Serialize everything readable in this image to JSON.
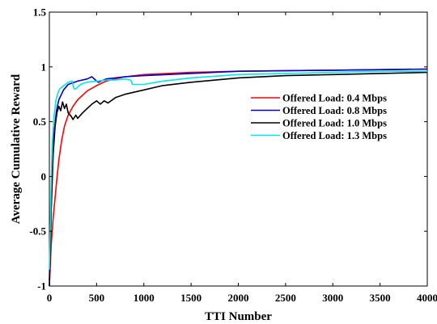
{
  "chart_data": {
    "type": "line",
    "title": "",
    "xlabel": "TTI Number",
    "ylabel": "Average Cumulative Reward",
    "xlim": [
      0,
      4000
    ],
    "ylim": [
      -1,
      1.5
    ],
    "x_ticks": [
      "0",
      "500",
      "1000",
      "1500",
      "2000",
      "2500",
      "3000",
      "3500",
      "4000"
    ],
    "y_ticks": [
      "-1",
      "-0.5",
      "0",
      "0.5",
      "1",
      "1.5"
    ],
    "grid": false,
    "legend_position": "upper-right",
    "series": [
      {
        "name": "Offered Load: 0.4 Mbps",
        "color": "#ff0000",
        "points": [
          [
            0,
            -1.0
          ],
          [
            20,
            -0.62
          ],
          [
            40,
            -0.38
          ],
          [
            60,
            -0.2
          ],
          [
            80,
            -0.02
          ],
          [
            100,
            0.15
          ],
          [
            130,
            0.33
          ],
          [
            160,
            0.46
          ],
          [
            200,
            0.56
          ],
          [
            250,
            0.64
          ],
          [
            300,
            0.7
          ],
          [
            400,
            0.78
          ],
          [
            500,
            0.83
          ],
          [
            600,
            0.87
          ],
          [
            800,
            0.91
          ],
          [
            1000,
            0.93
          ],
          [
            1500,
            0.95
          ],
          [
            2000,
            0.96
          ],
          [
            3000,
            0.97
          ],
          [
            4000,
            0.98
          ]
        ]
      },
      {
        "name": "Offered Load: 0.8 Mbps",
        "color": "#0000cc",
        "points": [
          [
            0,
            -0.95
          ],
          [
            15,
            -0.4
          ],
          [
            30,
            0.05
          ],
          [
            50,
            0.4
          ],
          [
            75,
            0.6
          ],
          [
            100,
            0.7
          ],
          [
            150,
            0.79
          ],
          [
            200,
            0.84
          ],
          [
            300,
            0.87
          ],
          [
            400,
            0.89
          ],
          [
            450,
            0.91
          ],
          [
            500,
            0.87
          ],
          [
            520,
            0.86
          ],
          [
            600,
            0.89
          ],
          [
            800,
            0.91
          ],
          [
            1000,
            0.92
          ],
          [
            1500,
            0.94
          ],
          [
            2000,
            0.96
          ],
          [
            3000,
            0.97
          ],
          [
            4000,
            0.98
          ]
        ]
      },
      {
        "name": "Offered Load: 1.0 Mbps",
        "color": "#000000",
        "points": [
          [
            0,
            -1.0
          ],
          [
            20,
            -0.3
          ],
          [
            40,
            0.2
          ],
          [
            60,
            0.45
          ],
          [
            80,
            0.58
          ],
          [
            100,
            0.64
          ],
          [
            120,
            0.6
          ],
          [
            140,
            0.68
          ],
          [
            160,
            0.62
          ],
          [
            180,
            0.66
          ],
          [
            200,
            0.58
          ],
          [
            230,
            0.55
          ],
          [
            250,
            0.52
          ],
          [
            280,
            0.56
          ],
          [
            300,
            0.53
          ],
          [
            350,
            0.58
          ],
          [
            400,
            0.62
          ],
          [
            450,
            0.66
          ],
          [
            500,
            0.69
          ],
          [
            540,
            0.66
          ],
          [
            580,
            0.69
          ],
          [
            620,
            0.67
          ],
          [
            700,
            0.72
          ],
          [
            800,
            0.75
          ],
          [
            1000,
            0.79
          ],
          [
            1200,
            0.83
          ],
          [
            1500,
            0.86
          ],
          [
            2000,
            0.9
          ],
          [
            2500,
            0.92
          ],
          [
            3000,
            0.93
          ],
          [
            3500,
            0.94
          ],
          [
            4000,
            0.95
          ]
        ]
      },
      {
        "name": "Offered Load: 1.3 Mbps",
        "color": "#00e5ee",
        "points": [
          [
            0,
            -0.85
          ],
          [
            15,
            -0.2
          ],
          [
            30,
            0.3
          ],
          [
            50,
            0.55
          ],
          [
            70,
            0.7
          ],
          [
            90,
            0.76
          ],
          [
            110,
            0.8
          ],
          [
            140,
            0.82
          ],
          [
            170,
            0.84
          ],
          [
            200,
            0.86
          ],
          [
            240,
            0.87
          ],
          [
            260,
            0.8
          ],
          [
            280,
            0.8
          ],
          [
            330,
            0.84
          ],
          [
            400,
            0.86
          ],
          [
            500,
            0.87
          ],
          [
            600,
            0.88
          ],
          [
            700,
            0.88
          ],
          [
            800,
            0.89
          ],
          [
            860,
            0.88
          ],
          [
            880,
            0.84
          ],
          [
            1000,
            0.84
          ],
          [
            1200,
            0.87
          ],
          [
            1500,
            0.9
          ],
          [
            2000,
            0.93
          ],
          [
            2500,
            0.94
          ],
          [
            3000,
            0.95
          ],
          [
            3500,
            0.96
          ],
          [
            4000,
            0.96
          ]
        ]
      }
    ]
  }
}
